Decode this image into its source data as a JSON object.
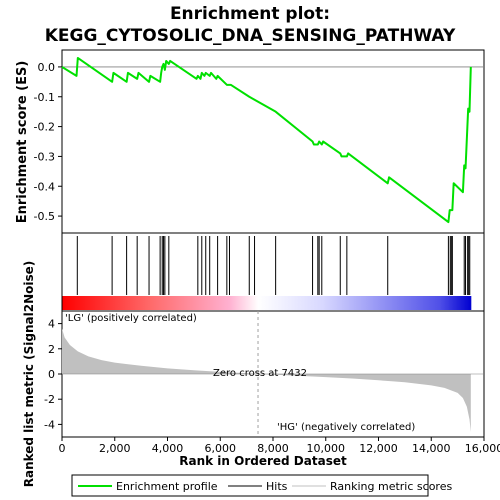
{
  "title_line1": "Enrichment plot:",
  "title_line2": "KEGG_CYTOSOLIC_DNA_SENSING_PATHWAY",
  "colors": {
    "profile": "#00e000",
    "ranking_fill": "#c0c0c0",
    "lg_text": "#ff0000",
    "hg_text": "#0000ff",
    "zero_line": "#a0a0a0",
    "heat_red": "#ff2020",
    "heat_blue": "#2020e0"
  },
  "chart_data": [
    {
      "type": "line",
      "name": "enrichment-profile",
      "ylabel": "Enrichment score (ES)",
      "xlim": [
        0,
        16000
      ],
      "ylim": [
        -0.55,
        0.05
      ],
      "yticks": [
        0.0,
        -0.1,
        -0.2,
        -0.3,
        -0.4,
        -0.5
      ],
      "ytick_labels": [
        "0.0",
        "-0.1",
        "-0.2",
        "-0.3",
        "-0.4",
        "-0.5"
      ],
      "x": [
        0,
        550,
        600,
        1900,
        1950,
        2450,
        2500,
        2850,
        2900,
        3300,
        3350,
        3720,
        3760,
        3800,
        3850,
        3900,
        3950,
        4050,
        4100,
        5100,
        5150,
        5250,
        5300,
        5400,
        5450,
        5600,
        5650,
        5850,
        5900,
        6250,
        6300,
        6400,
        7100,
        7300,
        8100,
        9500,
        9550,
        9700,
        9750,
        9850,
        9900,
        10550,
        10600,
        10800,
        10850,
        12350,
        12400,
        14650,
        14700,
        14800,
        14850,
        15200,
        15250,
        15300,
        15350,
        15400,
        15450,
        15500
      ],
      "values": [
        0.0,
        -0.03,
        0.03,
        -0.05,
        -0.02,
        -0.05,
        -0.02,
        -0.04,
        -0.02,
        -0.05,
        -0.03,
        -0.05,
        -0.02,
        0.0,
        0.01,
        -0.01,
        0.02,
        0.01,
        0.02,
        -0.04,
        -0.03,
        -0.04,
        -0.02,
        -0.03,
        -0.02,
        -0.03,
        -0.02,
        -0.04,
        -0.03,
        -0.06,
        -0.06,
        -0.06,
        -0.1,
        -0.11,
        -0.15,
        -0.25,
        -0.26,
        -0.26,
        -0.25,
        -0.26,
        -0.25,
        -0.29,
        -0.3,
        -0.3,
        -0.29,
        -0.39,
        -0.37,
        -0.52,
        -0.48,
        -0.48,
        -0.39,
        -0.42,
        -0.33,
        -0.34,
        -0.24,
        -0.14,
        -0.15,
        0.0
      ]
    },
    {
      "type": "scatter",
      "name": "hits",
      "x": [
        580,
        1900,
        2450,
        2850,
        3300,
        3720,
        3800,
        3850,
        3900,
        4050,
        5150,
        5300,
        5450,
        5600,
        5900,
        6250,
        6350,
        7100,
        7300,
        8100,
        9500,
        9700,
        9750,
        9850,
        10550,
        10800,
        12350,
        14650,
        14720,
        14760,
        14800,
        15250,
        15300,
        15380,
        15420,
        15460
      ]
    },
    {
      "type": "area",
      "name": "ranking-metric",
      "xlabel": "Rank in Ordered Dataset",
      "ylabel": "Ranked list metric (Signal2Noise)",
      "xlim": [
        0,
        16000
      ],
      "ylim": [
        -5,
        5
      ],
      "xticks": [
        0,
        2000,
        4000,
        6000,
        8000,
        10000,
        12000,
        14000,
        16000
      ],
      "xtick_labels": [
        "0",
        "2,000",
        "4,000",
        "6,000",
        "8,000",
        "10,000",
        "12,000",
        "14,000",
        "16,000"
      ],
      "yticks": [
        4,
        2,
        0,
        -2,
        -4
      ],
      "ytick_labels": [
        "4",
        "2",
        "0",
        "-2",
        "-4"
      ],
      "x": [
        0,
        100,
        300,
        600,
        1000,
        1500,
        2000,
        3000,
        4000,
        5000,
        6000,
        7000,
        7432,
        8000,
        9000,
        10000,
        11000,
        12000,
        13000,
        14000,
        14500,
        15000,
        15200,
        15350,
        15450,
        15500
      ],
      "values": [
        3.6,
        2.9,
        2.3,
        1.8,
        1.4,
        1.1,
        0.9,
        0.65,
        0.45,
        0.3,
        0.17,
        0.06,
        0.0,
        -0.05,
        -0.15,
        -0.25,
        -0.36,
        -0.5,
        -0.65,
        -0.9,
        -1.1,
        -1.5,
        -1.9,
        -2.6,
        -3.6,
        -4.6
      ]
    }
  ],
  "annotations": {
    "lg": "'LG' (positively correlated)",
    "hg": "'HG' (negatively correlated)",
    "zero_cross": "Zero cross at 7432",
    "zero_cross_rank": 7432
  },
  "legend": {
    "profile": "Enrichment profile",
    "hits": "Hits",
    "ranking": "Ranking metric scores"
  }
}
